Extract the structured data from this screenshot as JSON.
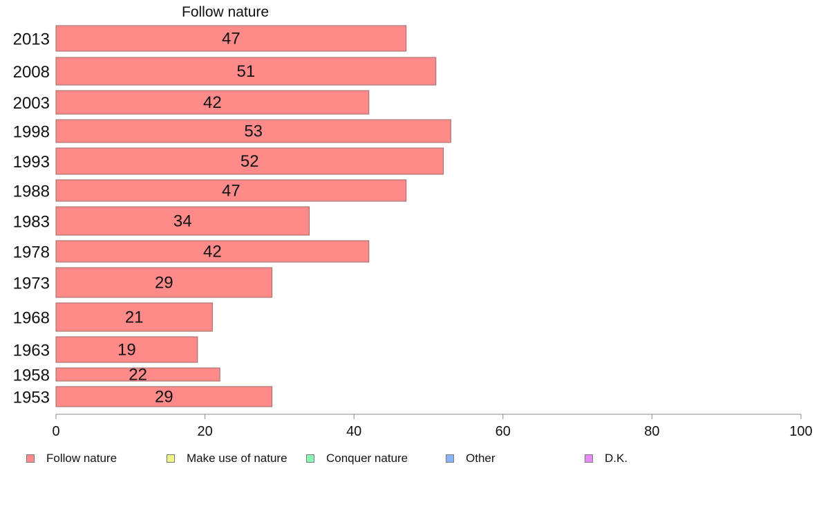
{
  "chart_data": {
    "type": "bar",
    "orientation": "horizontal",
    "title": "Follow nature",
    "categories": [
      "2013",
      "2008",
      "2003",
      "1998",
      "1993",
      "1988",
      "1983",
      "1978",
      "1973",
      "1968",
      "1963",
      "1958",
      "1953"
    ],
    "series": [
      {
        "name": "Follow nature",
        "color": "#ff8a8a",
        "values": [
          47,
          51,
          42,
          53,
          52,
          47,
          34,
          42,
          29,
          21,
          19,
          22,
          29
        ]
      }
    ],
    "xlabel": "",
    "ylabel": "",
    "xlim": [
      0,
      100
    ],
    "xticks": [
      0,
      20,
      40,
      60,
      80,
      100
    ],
    "grid": false,
    "legend": {
      "position": "bottom",
      "entries": [
        {
          "label": "Follow nature",
          "color": "#ff8a8a"
        },
        {
          "label": "Make use of nature",
          "color": "#eef58a"
        },
        {
          "label": "Conquer nature",
          "color": "#8af5b4"
        },
        {
          "label": "Other",
          "color": "#8ab4f5"
        },
        {
          "label": "D.K.",
          "color": "#e88af5"
        }
      ]
    }
  }
}
